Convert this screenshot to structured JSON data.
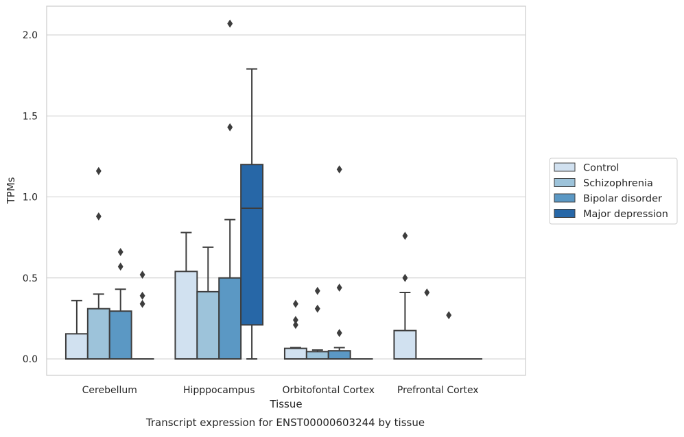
{
  "chart_data": {
    "type": "box",
    "title": "Transcript expression for ENST00000603244 by tissue",
    "xlabel": "Tissue",
    "ylabel": "TPMs",
    "ylim": [
      -0.1,
      2.18
    ],
    "yticks": [
      0.0,
      0.5,
      1.0,
      1.5,
      2.0
    ],
    "ytick_labels": [
      "0.0",
      "0.5",
      "1.0",
      "1.5",
      "2.0"
    ],
    "grid": "horizontal",
    "legend_position": "right",
    "categories": [
      "Cerebellum",
      "Hipppocampus",
      "Orbitofontal Cortex",
      "Prefrontal Cortex"
    ],
    "series": [
      {
        "name": "Control",
        "color": "#d1e1f0",
        "boxes": [
          {
            "q1": 0.0,
            "median": 0.0,
            "q3": 0.155,
            "whisker_low": 0.0,
            "whisker_high": 0.36,
            "outliers": []
          },
          {
            "q1": 0.0,
            "median": 0.0,
            "q3": 0.54,
            "whisker_low": 0.0,
            "whisker_high": 0.78,
            "outliers": []
          },
          {
            "q1": 0.0,
            "median": 0.0,
            "q3": 0.065,
            "whisker_low": 0.0,
            "whisker_high": 0.07,
            "outliers": [
              0.21,
              0.24,
              0.34
            ]
          },
          {
            "q1": 0.0,
            "median": 0.0,
            "q3": 0.175,
            "whisker_low": 0.0,
            "whisker_high": 0.41,
            "outliers": [
              0.5,
              0.76
            ]
          }
        ]
      },
      {
        "name": "Schizophrenia",
        "color": "#9dc3da",
        "boxes": [
          {
            "q1": 0.0,
            "median": 0.0,
            "q3": 0.31,
            "whisker_low": 0.0,
            "whisker_high": 0.4,
            "outliers": [
              0.88,
              1.16
            ]
          },
          {
            "q1": 0.0,
            "median": 0.0,
            "q3": 0.415,
            "whisker_low": 0.0,
            "whisker_high": 0.69,
            "outliers": []
          },
          {
            "q1": 0.0,
            "median": 0.0,
            "q3": 0.045,
            "whisker_low": 0.0,
            "whisker_high": 0.055,
            "outliers": [
              0.31,
              0.42
            ]
          },
          {
            "q1": 0.0,
            "median": 0.0,
            "q3": 0.0,
            "whisker_low": 0.0,
            "whisker_high": 0.0,
            "outliers": [
              0.41
            ]
          }
        ]
      },
      {
        "name": "Bipolar disorder",
        "color": "#5b98c4",
        "boxes": [
          {
            "q1": 0.0,
            "median": 0.0,
            "q3": 0.295,
            "whisker_low": 0.0,
            "whisker_high": 0.43,
            "outliers": [
              0.57,
              0.66
            ]
          },
          {
            "q1": 0.0,
            "median": 0.0,
            "q3": 0.5,
            "whisker_low": 0.0,
            "whisker_high": 0.86,
            "outliers": [
              1.43,
              2.07
            ]
          },
          {
            "q1": 0.0,
            "median": 0.0,
            "q3": 0.05,
            "whisker_low": 0.0,
            "whisker_high": 0.07,
            "outliers": [
              0.16,
              0.44,
              1.17
            ]
          },
          {
            "q1": 0.0,
            "median": 0.0,
            "q3": 0.0,
            "whisker_low": 0.0,
            "whisker_high": 0.0,
            "outliers": [
              0.27
            ]
          }
        ]
      },
      {
        "name": "Major depression",
        "color": "#2767a7",
        "boxes": [
          {
            "q1": 0.0,
            "median": 0.0,
            "q3": 0.0,
            "whisker_low": 0.0,
            "whisker_high": 0.0,
            "outliers": [
              0.34,
              0.39,
              0.52
            ]
          },
          {
            "q1": 0.21,
            "median": 0.93,
            "q3": 1.2,
            "whisker_low": 0.0,
            "whisker_high": 1.79,
            "outliers": []
          },
          {
            "q1": 0.0,
            "median": 0.0,
            "q3": 0.0,
            "whisker_low": 0.0,
            "whisker_high": 0.0,
            "outliers": []
          },
          {
            "q1": 0.0,
            "median": 0.0,
            "q3": 0.0,
            "whisker_low": 0.0,
            "whisker_high": 0.0,
            "outliers": []
          }
        ]
      }
    ]
  }
}
